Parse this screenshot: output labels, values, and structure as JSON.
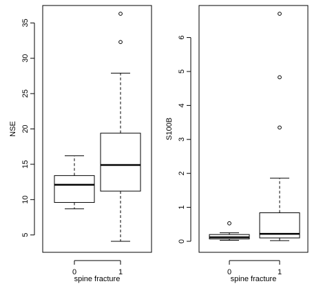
{
  "chart_data": [
    {
      "type": "boxplot",
      "xlabel": "spine fracture",
      "ylabel": "NSE",
      "categories": [
        "0",
        "1"
      ],
      "ylim": [
        4.1,
        36.3
      ],
      "yticks": [
        5,
        10,
        15,
        20,
        25,
        30,
        35
      ],
      "boxes": [
        {
          "category": "0",
          "whisker_low": 8.7,
          "q1": 9.6,
          "median": 12.1,
          "q3": 13.4,
          "whisker_high": 16.2,
          "outliers": []
        },
        {
          "category": "1",
          "whisker_low": 4.1,
          "q1": 11.2,
          "median": 14.9,
          "q3": 19.4,
          "whisker_high": 27.9,
          "outliers": [
            32.3,
            36.3
          ]
        }
      ]
    },
    {
      "type": "boxplot",
      "xlabel": "spine fracture",
      "ylabel": "S100B",
      "categories": [
        "0",
        "1"
      ],
      "ylim": [
        0.0,
        6.7
      ],
      "yticks": [
        0,
        1,
        2,
        3,
        4,
        5,
        6
      ],
      "boxes": [
        {
          "category": "0",
          "whisker_low": 0.03,
          "q1": 0.07,
          "median": 0.12,
          "q3": 0.2,
          "whisker_high": 0.25,
          "outliers": [
            0.53
          ]
        },
        {
          "category": "1",
          "whisker_low": 0.02,
          "q1": 0.1,
          "median": 0.22,
          "q3": 0.84,
          "whisker_high": 1.86,
          "outliers": [
            3.35,
            4.83,
            6.7
          ]
        }
      ]
    }
  ]
}
